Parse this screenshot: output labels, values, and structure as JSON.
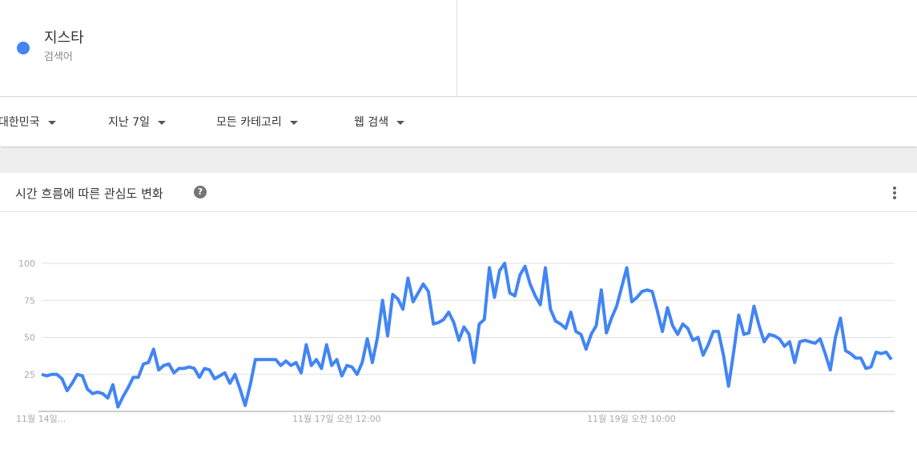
{
  "search_term": {
    "name": "지스타",
    "type": "검색어",
    "color": "#4285f4"
  },
  "filters": [
    {
      "label": "대한민국"
    },
    {
      "label": "지난 7일"
    },
    {
      "label": "모든 카테고리"
    },
    {
      "label": "웹 검색"
    }
  ],
  "card": {
    "title": "시간 흐름에 따른 관심도 변화",
    "help_icon": "question-circle-icon",
    "more_icon": "more-vert-icon"
  },
  "chart_data": {
    "type": "line",
    "title": "",
    "ylim": [
      0,
      100
    ],
    "y_ticks": [
      "25",
      "50",
      "75",
      "100"
    ],
    "x_tick_labels": [
      "11월 14일...",
      "11월 17일 오전 12:00",
      "11월 19일 오전 10:00"
    ],
    "grid": true,
    "series": [
      {
        "name": "지스타",
        "color": "#4285f4",
        "values": [
          25,
          24,
          25,
          25,
          22,
          14,
          19,
          25,
          24,
          15,
          12,
          13,
          12,
          9,
          18,
          3,
          10,
          16,
          23,
          23,
          32,
          33,
          42,
          28,
          31,
          32,
          26,
          29,
          29,
          30,
          29,
          23,
          29,
          28,
          22,
          24,
          26,
          19,
          25,
          15,
          4,
          18,
          35,
          35,
          35,
          35,
          35,
          31,
          34,
          31,
          33,
          26,
          45,
          31,
          35,
          29,
          45,
          31,
          35,
          24,
          31,
          30,
          25,
          33,
          49,
          33,
          50,
          75,
          51,
          79,
          76,
          69,
          90,
          74,
          80,
          86,
          81,
          59,
          60,
          62,
          67,
          60,
          48,
          57,
          52,
          33,
          59,
          62,
          97,
          77,
          95,
          100,
          80,
          78,
          92,
          98,
          86,
          78,
          72,
          97,
          69,
          61,
          59,
          56,
          67,
          54,
          52,
          42,
          52,
          58,
          82,
          53,
          63,
          71,
          84,
          97,
          74,
          77,
          81,
          82,
          81,
          68,
          54,
          70,
          58,
          52,
          59,
          56,
          48,
          50,
          38,
          45,
          54,
          54,
          38,
          17,
          40,
          65,
          52,
          53,
          71,
          58,
          47,
          52,
          51,
          49,
          44,
          47,
          33,
          47,
          48,
          47,
          46,
          49,
          39,
          28,
          50,
          63,
          41,
          39,
          36,
          36,
          29,
          30,
          40,
          39,
          40,
          35
        ]
      }
    ]
  }
}
